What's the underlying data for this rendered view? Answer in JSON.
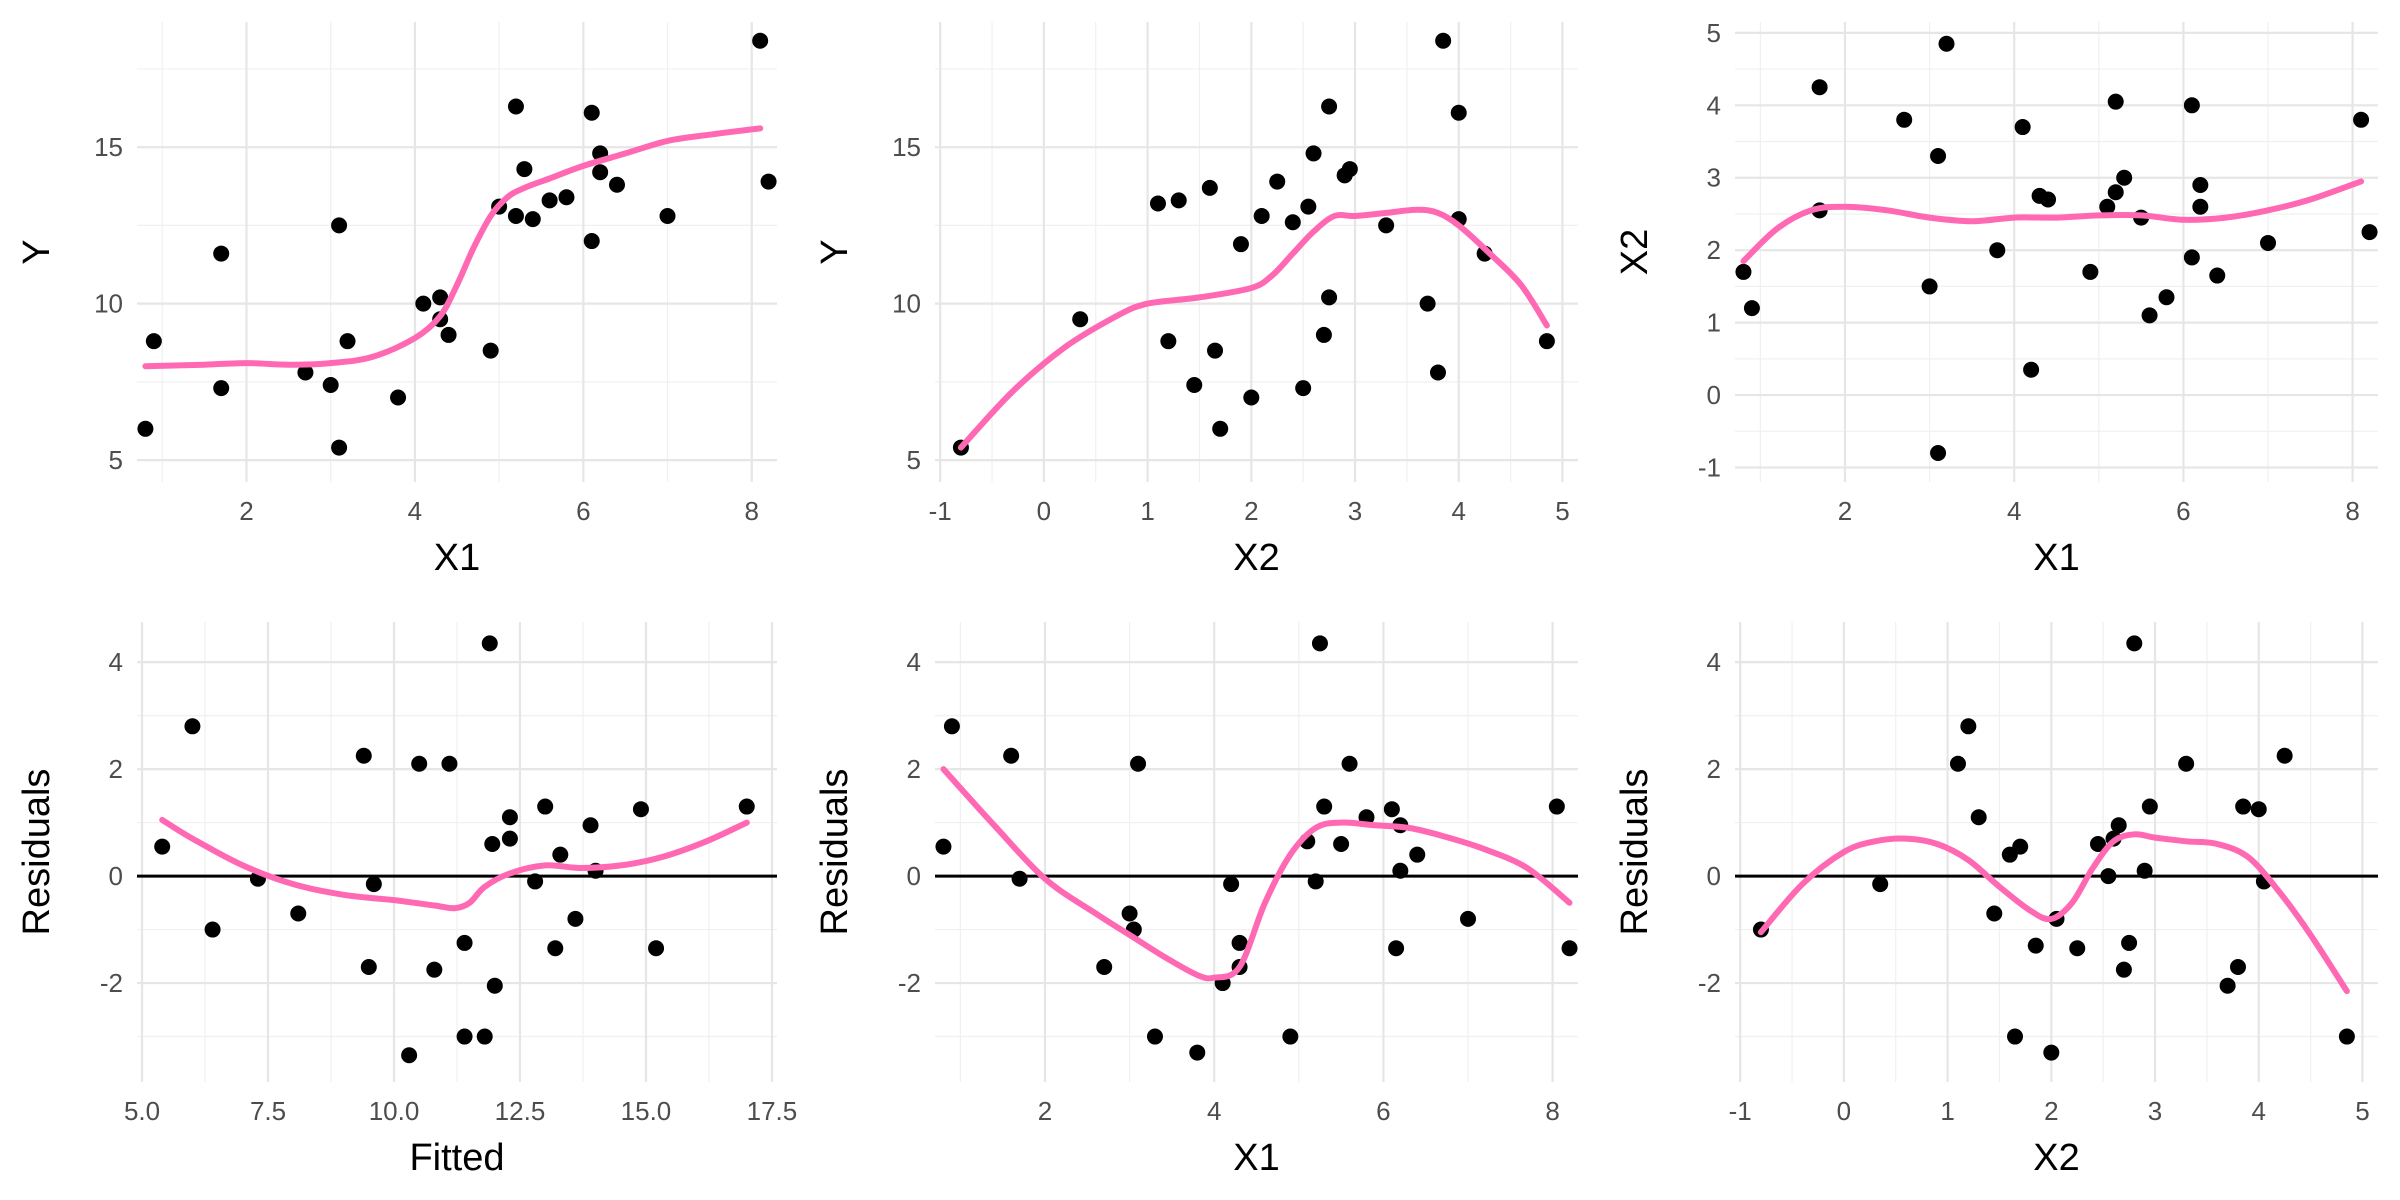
{
  "colors": {
    "point": "#000000",
    "smooth": "#ff69b4",
    "grid_major": "#e6e6e6",
    "grid_minor": "#f0f0f0"
  },
  "chart_data": [
    {
      "type": "scatter",
      "title": "",
      "xlabel": "X1",
      "ylabel": "Y",
      "xlim": [
        0.7,
        8.3
      ],
      "ylim": [
        4.3,
        19.0
      ],
      "xticks": [
        2,
        4,
        6,
        8
      ],
      "xtick_labels": [
        "2",
        "4",
        "6",
        "8"
      ],
      "yticks": [
        5,
        10,
        15
      ],
      "ytick_labels": [
        "5",
        "10",
        "15"
      ],
      "grid": true,
      "points": {
        "x": [
          0.8,
          0.9,
          1.7,
          1.7,
          2.7,
          3.0,
          3.1,
          3.1,
          3.2,
          3.8,
          4.1,
          4.3,
          4.3,
          4.4,
          4.9,
          5.0,
          5.2,
          5.2,
          5.3,
          5.4,
          5.6,
          5.8,
          6.1,
          6.1,
          6.2,
          6.2,
          6.4,
          7.0,
          8.1,
          8.2
        ],
        "y": [
          6.0,
          8.8,
          11.6,
          7.3,
          7.8,
          7.4,
          5.4,
          12.5,
          8.8,
          7.0,
          10.0,
          10.2,
          9.5,
          9.0,
          8.5,
          13.1,
          12.8,
          16.3,
          14.3,
          12.7,
          13.3,
          13.4,
          12.0,
          16.1,
          14.8,
          14.2,
          13.8,
          12.8,
          18.4,
          13.9
        ]
      },
      "smooth": {
        "x": [
          0.8,
          1.5,
          2.0,
          2.5,
          3.0,
          3.5,
          4.0,
          4.3,
          4.5,
          4.7,
          4.9,
          5.1,
          5.3,
          5.6,
          6.0,
          6.5,
          7.0,
          7.5,
          8.1
        ],
        "y": [
          8.0,
          8.05,
          8.1,
          8.05,
          8.1,
          8.3,
          8.9,
          9.6,
          10.6,
          11.8,
          12.8,
          13.4,
          13.7,
          14.0,
          14.4,
          14.8,
          15.2,
          15.4,
          15.6
        ]
      },
      "hline": null
    },
    {
      "type": "scatter",
      "title": "",
      "xlabel": "X2",
      "ylabel": "Y",
      "xlim": [
        -1.05,
        5.15
      ],
      "ylim": [
        4.3,
        19.0
      ],
      "xticks": [
        -1,
        0,
        1,
        2,
        3,
        4,
        5
      ],
      "xtick_labels": [
        "-1",
        "0",
        "1",
        "2",
        "3",
        "4",
        "5"
      ],
      "yticks": [
        5,
        10,
        15
      ],
      "ytick_labels": [
        "5",
        "10",
        "15"
      ],
      "grid": true,
      "points": {
        "x": [
          -0.8,
          0.35,
          1.1,
          1.2,
          1.3,
          1.45,
          1.6,
          1.65,
          1.7,
          1.9,
          2.0,
          2.1,
          2.25,
          2.4,
          2.5,
          2.55,
          2.6,
          2.7,
          2.75,
          2.75,
          2.9,
          2.95,
          3.3,
          3.7,
          3.8,
          3.85,
          4.0,
          4.0,
          4.25,
          4.85
        ],
        "y": [
          5.4,
          9.5,
          13.2,
          8.8,
          13.3,
          7.4,
          13.7,
          8.5,
          6.0,
          11.9,
          7.0,
          12.8,
          13.9,
          12.6,
          7.3,
          13.1,
          14.8,
          9.0,
          10.2,
          16.3,
          14.1,
          14.3,
          12.5,
          10.0,
          7.8,
          18.4,
          16.1,
          12.7,
          11.6,
          8.8
        ]
      },
      "smooth": {
        "x": [
          -0.8,
          -0.3,
          0.2,
          0.7,
          1.0,
          1.5,
          2.0,
          2.2,
          2.4,
          2.6,
          2.8,
          3.0,
          3.3,
          3.6,
          3.8,
          4.0,
          4.3,
          4.6,
          4.85
        ],
        "y": [
          5.4,
          7.2,
          8.6,
          9.6,
          10.0,
          10.2,
          10.5,
          10.9,
          11.6,
          12.3,
          12.8,
          12.8,
          12.9,
          13.0,
          12.9,
          12.5,
          11.6,
          10.6,
          9.3
        ]
      },
      "hline": null
    },
    {
      "type": "scatter",
      "title": "",
      "xlabel": "X1",
      "ylabel": "X2",
      "xlim": [
        0.7,
        8.3
      ],
      "ylim": [
        -1.2,
        5.15
      ],
      "xticks": [
        2,
        4,
        6,
        8
      ],
      "xtick_labels": [
        "2",
        "4",
        "6",
        "8"
      ],
      "yticks": [
        -1,
        0,
        1,
        2,
        3,
        4,
        5
      ],
      "ytick_labels": [
        "-1",
        "0",
        "1",
        "2",
        "3",
        "4",
        "5"
      ],
      "grid": true,
      "points": {
        "x": [
          0.8,
          0.9,
          1.7,
          1.7,
          2.7,
          3.0,
          3.1,
          3.1,
          3.2,
          3.8,
          4.1,
          4.2,
          4.3,
          4.4,
          4.9,
          5.1,
          5.2,
          5.2,
          5.3,
          5.5,
          5.6,
          5.8,
          6.1,
          6.1,
          6.2,
          6.2,
          6.4,
          7.0,
          8.1,
          8.2
        ],
        "y": [
          1.7,
          1.2,
          4.25,
          2.55,
          3.8,
          1.5,
          -0.8,
          3.3,
          4.85,
          2.0,
          3.7,
          0.35,
          2.75,
          2.7,
          1.7,
          2.6,
          4.05,
          2.8,
          3.0,
          2.45,
          1.1,
          1.35,
          1.9,
          4.0,
          2.6,
          2.9,
          1.65,
          2.1,
          3.8,
          2.25
        ]
      },
      "smooth": {
        "x": [
          0.8,
          1.2,
          1.6,
          2.0,
          2.5,
          3.0,
          3.5,
          4.0,
          4.5,
          5.0,
          5.5,
          6.0,
          6.5,
          7.0,
          7.5,
          8.1
        ],
        "y": [
          1.85,
          2.3,
          2.55,
          2.6,
          2.55,
          2.45,
          2.4,
          2.45,
          2.45,
          2.48,
          2.48,
          2.42,
          2.45,
          2.55,
          2.7,
          2.95
        ]
      },
      "hline": null
    },
    {
      "type": "scatter",
      "title": "",
      "xlabel": "Fitted",
      "ylabel": "Residuals",
      "xlim": [
        4.9,
        17.6
      ],
      "ylim": [
        -3.85,
        4.75
      ],
      "xticks": [
        5,
        7.5,
        10,
        12.5,
        15,
        17.5
      ],
      "xtick_labels": [
        "5.0",
        "7.5",
        "10.0",
        "12.5",
        "15.0",
        "17.5"
      ],
      "yticks": [
        -2,
        0,
        2,
        4
      ],
      "ytick_labels": [
        "-2",
        "0",
        "2",
        "4"
      ],
      "grid": true,
      "points": {
        "x": [
          5.4,
          6.0,
          6.4,
          7.3,
          8.1,
          9.4,
          9.5,
          9.6,
          10.3,
          10.5,
          10.8,
          11.1,
          11.4,
          11.4,
          11.8,
          11.9,
          11.95,
          12.0,
          12.3,
          12.3,
          12.8,
          13.0,
          13.2,
          13.3,
          13.6,
          13.9,
          14.0,
          14.9,
          15.2,
          17.0
        ],
        "y": [
          0.55,
          2.8,
          -1.0,
          -0.05,
          -0.7,
          2.25,
          -1.7,
          -0.15,
          -3.35,
          2.1,
          -1.75,
          2.1,
          -1.25,
          -3.0,
          -3.0,
          4.35,
          0.6,
          -2.05,
          1.1,
          0.7,
          -0.1,
          1.3,
          -1.35,
          0.4,
          -0.8,
          0.95,
          0.1,
          1.25,
          -1.35,
          1.3
        ]
      },
      "smooth": {
        "x": [
          5.4,
          6.0,
          7.0,
          8.0,
          9.0,
          10.0,
          10.8,
          11.2,
          11.5,
          11.8,
          12.3,
          13.0,
          13.7,
          14.5,
          15.3,
          16.2,
          17.0
        ],
        "y": [
          1.05,
          0.7,
          0.2,
          -0.15,
          -0.35,
          -0.45,
          -0.55,
          -0.6,
          -0.5,
          -0.2,
          0.05,
          0.2,
          0.15,
          0.2,
          0.35,
          0.65,
          1.0
        ]
      },
      "hline": 0
    },
    {
      "type": "scatter",
      "title": "",
      "xlabel": "X1",
      "ylabel": "Residuals",
      "xlim": [
        0.7,
        8.3
      ],
      "ylim": [
        -3.85,
        4.75
      ],
      "xticks": [
        2,
        4,
        6,
        8
      ],
      "xtick_labels": [
        "2",
        "4",
        "6",
        "8"
      ],
      "yticks": [
        -2,
        0,
        2,
        4
      ],
      "ytick_labels": [
        "-2",
        "0",
        "2",
        "4"
      ],
      "grid": true,
      "points": {
        "x": [
          0.8,
          0.9,
          1.6,
          1.7,
          2.7,
          3.0,
          3.05,
          3.1,
          3.3,
          3.8,
          4.1,
          4.2,
          4.3,
          4.3,
          4.9,
          5.1,
          5.2,
          5.25,
          5.3,
          5.5,
          5.6,
          5.8,
          6.1,
          6.15,
          6.2,
          6.2,
          6.4,
          7.0,
          8.05,
          8.2
        ],
        "y": [
          0.55,
          2.8,
          2.25,
          -0.05,
          -1.7,
          -0.7,
          -1.0,
          2.1,
          -3.0,
          -3.3,
          -2.0,
          -0.15,
          -1.25,
          -1.7,
          -3.0,
          0.65,
          -0.1,
          4.35,
          1.3,
          0.6,
          2.1,
          1.1,
          1.25,
          -1.35,
          0.95,
          0.1,
          0.4,
          -0.8,
          1.3,
          -1.35
        ]
      },
      "smooth": {
        "x": [
          0.8,
          1.4,
          2.0,
          2.6,
          3.0,
          3.4,
          3.8,
          4.0,
          4.3,
          4.6,
          4.9,
          5.2,
          5.5,
          5.9,
          6.3,
          6.7,
          7.2,
          7.7,
          8.2
        ],
        "y": [
          2.0,
          0.95,
          -0.05,
          -0.7,
          -1.1,
          -1.5,
          -1.85,
          -1.9,
          -1.7,
          -0.5,
          0.4,
          0.9,
          1.0,
          0.95,
          0.9,
          0.75,
          0.5,
          0.15,
          -0.5
        ]
      },
      "hline": 0
    },
    {
      "type": "scatter",
      "title": "",
      "xlabel": "X2",
      "ylabel": "Residuals",
      "xlim": [
        -1.05,
        5.15
      ],
      "ylim": [
        -3.85,
        4.75
      ],
      "xticks": [
        -1,
        0,
        1,
        2,
        3,
        4,
        5
      ],
      "xtick_labels": [
        "-1",
        "0",
        "1",
        "2",
        "3",
        "4",
        "5"
      ],
      "yticks": [
        -2,
        0,
        2,
        4
      ],
      "ytick_labels": [
        "-2",
        "0",
        "2",
        "4"
      ],
      "grid": true,
      "points": {
        "x": [
          -0.8,
          0.35,
          1.1,
          1.2,
          1.3,
          1.45,
          1.6,
          1.65,
          1.7,
          1.85,
          2.0,
          2.05,
          2.25,
          2.45,
          2.55,
          2.6,
          2.65,
          2.7,
          2.75,
          2.8,
          2.9,
          2.95,
          3.3,
          3.7,
          3.8,
          3.85,
          4.0,
          4.05,
          4.25,
          4.85
        ],
        "y": [
          -1.0,
          -0.15,
          2.1,
          2.8,
          1.1,
          -0.7,
          0.4,
          -3.0,
          0.55,
          -1.3,
          -3.3,
          -0.8,
          -1.35,
          0.6,
          0.0,
          0.7,
          0.95,
          -1.75,
          -1.25,
          4.35,
          0.1,
          1.3,
          2.1,
          -2.05,
          -1.7,
          1.3,
          1.25,
          -0.1,
          2.25,
          -3.0
        ]
      },
      "smooth": {
        "x": [
          -0.8,
          -0.4,
          0.0,
          0.3,
          0.6,
          0.9,
          1.2,
          1.5,
          1.8,
          2.0,
          2.2,
          2.4,
          2.6,
          2.8,
          3.0,
          3.3,
          3.6,
          3.9,
          4.2,
          4.5,
          4.85
        ],
        "y": [
          -1.05,
          -0.15,
          0.45,
          0.65,
          0.7,
          0.6,
          0.3,
          -0.2,
          -0.65,
          -0.8,
          -0.5,
          0.15,
          0.65,
          0.78,
          0.72,
          0.65,
          0.6,
          0.35,
          -0.3,
          -1.1,
          -2.15
        ]
      },
      "hline": 0
    }
  ]
}
